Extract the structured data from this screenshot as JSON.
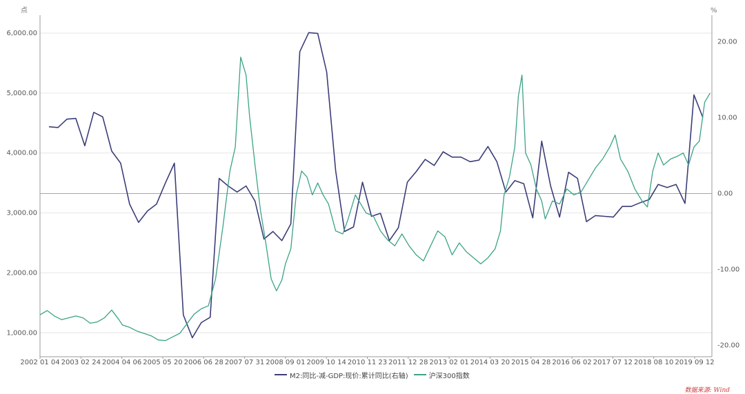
{
  "chart_data": {
    "type": "line",
    "left_unit": "点",
    "right_unit": "%",
    "left_axis": {
      "ticks": [
        1000,
        2000,
        3000,
        4000,
        5000,
        6000
      ],
      "tick_labels": [
        "1,000.00",
        "2,000.00",
        "3,000.00",
        "4,000.00",
        "5,000.00",
        "6,000.00"
      ],
      "range": [
        600,
        6300
      ]
    },
    "right_axis": {
      "ticks": [
        20,
        10,
        0,
        -10,
        -20
      ],
      "tick_labels": [
        "20.00",
        "10.00",
        "0.00",
        "-10.00",
        "-20.00"
      ],
      "range": [
        -21.5,
        23.5
      ]
    },
    "x_labels": [
      "2002 01 04",
      "2003 02 24",
      "2004 04 06",
      "2005 05 20",
      "2006 06 28",
      "2007 07 31",
      "2008 09 01",
      "2009 10 14",
      "2010 11 23",
      "2011 12 28",
      "2013 02 01",
      "2014 03 20",
      "2015 04 28",
      "2016 06 02",
      "2017 07 12",
      "2018 08 10",
      "2019 09 12"
    ],
    "x_range": [
      2002.0,
      2020.75
    ],
    "series": [
      {
        "name": "M2:同比-减-GDP:现价:累计同比(右轴)",
        "axis": "right",
        "color": "#3a3d78",
        "x": [
          2002.25,
          2002.5,
          2002.75,
          2003.0,
          2003.25,
          2003.5,
          2003.75,
          2004.0,
          2004.25,
          2004.5,
          2004.75,
          2005.0,
          2005.25,
          2005.5,
          2005.75,
          2006.0,
          2006.25,
          2006.5,
          2006.75,
          2007.0,
          2007.25,
          2007.5,
          2007.75,
          2008.0,
          2008.25,
          2008.5,
          2008.75,
          2009.0,
          2009.25,
          2009.5,
          2009.75,
          2010.0,
          2010.25,
          2010.5,
          2010.75,
          2011.0,
          2011.25,
          2011.5,
          2011.75,
          2012.0,
          2012.25,
          2012.5,
          2012.75,
          2013.0,
          2013.25,
          2013.5,
          2013.75,
          2014.0,
          2014.25,
          2014.5,
          2014.75,
          2015.0,
          2015.25,
          2015.5,
          2015.75,
          2016.0,
          2016.25,
          2016.5,
          2016.75,
          2017.0,
          2017.25,
          2017.5,
          2017.75,
          2018.0,
          2018.25,
          2018.5,
          2018.75,
          2019.0,
          2019.25,
          2019.5,
          2019.75,
          2020.0,
          2020.25,
          2020.5
        ],
        "values": [
          8.8,
          8.7,
          9.8,
          9.9,
          6.3,
          10.7,
          10.1,
          5.6,
          4.0,
          -1.4,
          -3.8,
          -2.3,
          -1.4,
          1.4,
          4.0,
          -16.0,
          -19.0,
          -17.0,
          -16.3,
          2.0,
          1.0,
          0.2,
          1.0,
          -1.0,
          -6.0,
          -5.0,
          -6.2,
          -4.0,
          18.7,
          21.2,
          21.1,
          16.0,
          3.0,
          -5.0,
          -4.4,
          1.5,
          -3.0,
          -2.6,
          -6.2,
          -4.5,
          1.5,
          2.9,
          4.5,
          3.7,
          5.5,
          4.8,
          4.8,
          4.2,
          4.4,
          6.2,
          4.2,
          0.2,
          1.7,
          1.3,
          -3.2,
          6.9,
          1.0,
          -3.1,
          2.8,
          2.0,
          -3.7,
          -2.9,
          -3.0,
          -3.1,
          -1.7,
          -1.7,
          -1.2,
          -0.8,
          1.2,
          0.8,
          1.2,
          -1.3,
          13.0,
          10.0
        ]
      },
      {
        "name": "沪深300指数",
        "axis": "left",
        "color": "#3aa385",
        "x": [
          2002.0,
          2002.2,
          2002.4,
          2002.6,
          2002.8,
          2003.0,
          2003.2,
          2003.4,
          2003.6,
          2003.8,
          2004.0,
          2004.2,
          2004.3,
          2004.5,
          2004.7,
          2004.9,
          2005.1,
          2005.3,
          2005.5,
          2005.7,
          2005.9,
          2006.1,
          2006.3,
          2006.5,
          2006.7,
          2006.9,
          2007.1,
          2007.3,
          2007.45,
          2007.6,
          2007.75,
          2007.85,
          2008.0,
          2008.15,
          2008.3,
          2008.45,
          2008.6,
          2008.75,
          2008.85,
          2009.0,
          2009.15,
          2009.3,
          2009.45,
          2009.6,
          2009.75,
          2009.9,
          2010.05,
          2010.25,
          2010.45,
          2010.6,
          2010.8,
          2010.95,
          2011.1,
          2011.3,
          2011.5,
          2011.7,
          2011.9,
          2012.1,
          2012.3,
          2012.5,
          2012.7,
          2012.9,
          2013.1,
          2013.3,
          2013.5,
          2013.7,
          2013.9,
          2014.1,
          2014.3,
          2014.5,
          2014.7,
          2014.85,
          2014.95,
          2015.1,
          2015.25,
          2015.35,
          2015.45,
          2015.55,
          2015.7,
          2015.85,
          2016.0,
          2016.1,
          2016.3,
          2016.5,
          2016.7,
          2016.9,
          2017.1,
          2017.3,
          2017.5,
          2017.7,
          2017.9,
          2018.05,
          2018.2,
          2018.4,
          2018.6,
          2018.8,
          2018.95,
          2019.1,
          2019.25,
          2019.4,
          2019.6,
          2019.8,
          2019.95,
          2020.1,
          2020.25,
          2020.4,
          2020.55,
          2020.7
        ],
        "values": [
          1300,
          1370,
          1280,
          1220,
          1250,
          1280,
          1250,
          1160,
          1180,
          1250,
          1380,
          1220,
          1130,
          1090,
          1030,
          990,
          950,
          880,
          870,
          930,
          990,
          1150,
          1310,
          1400,
          1450,
          1900,
          2750,
          3700,
          4100,
          5600,
          5300,
          4600,
          3800,
          3050,
          2500,
          1900,
          1700,
          1880,
          2150,
          2400,
          3300,
          3700,
          3600,
          3300,
          3500,
          3300,
          3150,
          2700,
          2650,
          2900,
          3300,
          3150,
          3000,
          2950,
          2700,
          2550,
          2450,
          2650,
          2450,
          2300,
          2200,
          2450,
          2700,
          2600,
          2300,
          2500,
          2350,
          2250,
          2150,
          2250,
          2400,
          2700,
          3300,
          3600,
          4100,
          4950,
          5300,
          4000,
          3800,
          3400,
          3200,
          2900,
          3200,
          3150,
          3400,
          3300,
          3350,
          3550,
          3750,
          3900,
          4100,
          4300,
          3900,
          3700,
          3400,
          3200,
          3100,
          3700,
          4000,
          3800,
          3900,
          3950,
          4000,
          3800,
          4100,
          4200,
          4850,
          5000
        ]
      }
    ]
  },
  "source_text": "数据来源: Wind"
}
